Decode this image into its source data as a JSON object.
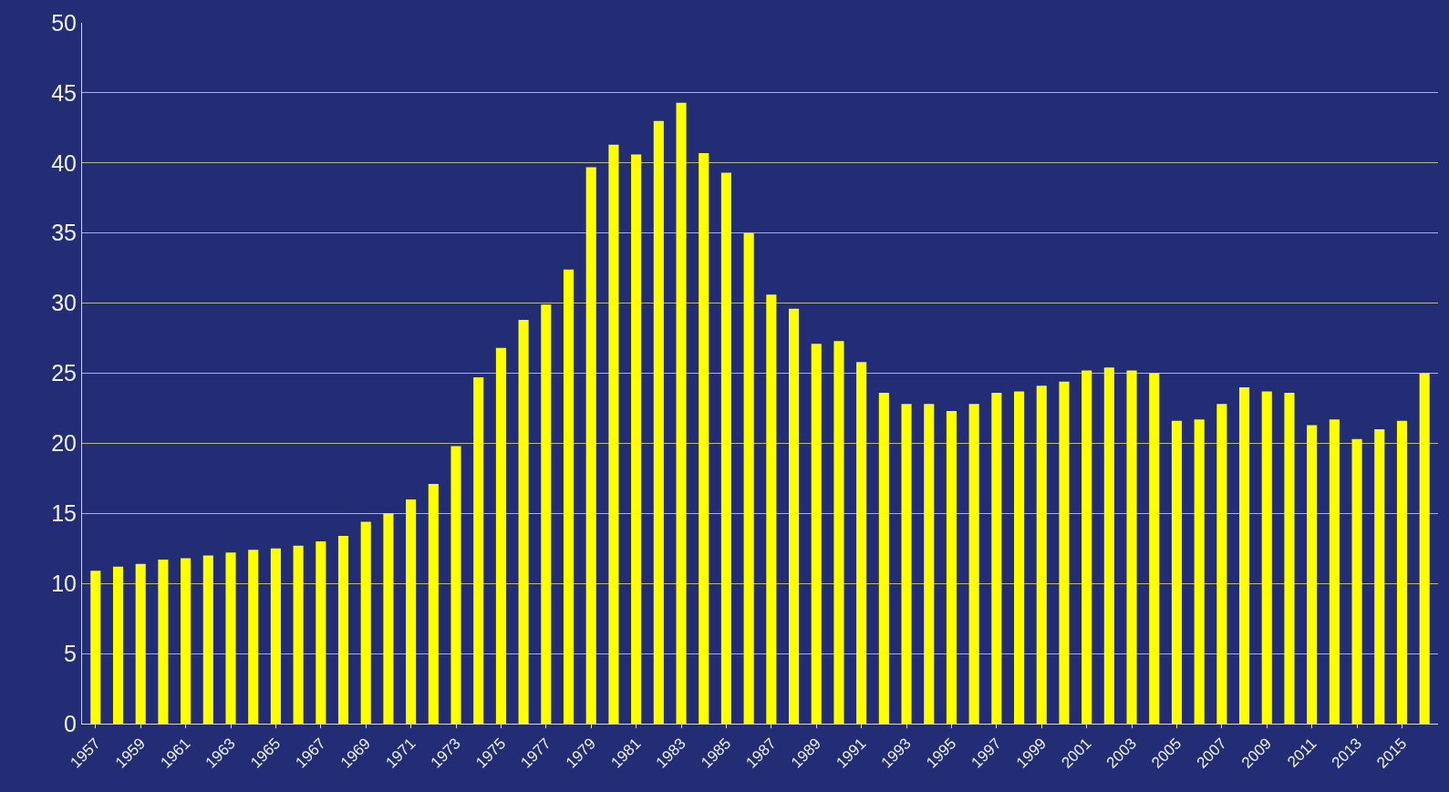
{
  "chart_data": {
    "type": "bar",
    "categories": [
      "1957",
      null,
      "1959",
      null,
      "1961",
      null,
      "1963",
      null,
      "1965",
      null,
      "1967",
      null,
      "1969",
      null,
      "1971",
      null,
      "1973",
      null,
      "1975",
      null,
      "1977",
      null,
      "1979",
      null,
      "1981",
      null,
      "1983",
      null,
      "1985",
      null,
      "1987",
      null,
      "1989",
      null,
      "1991",
      null,
      "1993",
      null,
      "1995",
      null,
      "1997",
      null,
      "1999",
      null,
      "2001",
      null,
      "2003",
      null,
      "2005",
      null,
      "2007",
      null,
      "2009",
      null,
      "2011",
      null,
      "2013",
      null,
      "2015",
      null
    ],
    "values": [
      10.9,
      11.2,
      11.4,
      11.7,
      11.8,
      12.0,
      12.2,
      12.4,
      12.5,
      12.7,
      13.0,
      13.4,
      14.4,
      15.0,
      16.0,
      17.1,
      19.8,
      24.7,
      26.8,
      28.8,
      29.9,
      32.4,
      39.7,
      41.3,
      40.6,
      43.0,
      44.3,
      40.7,
      39.3,
      35.0,
      30.6,
      29.6,
      27.1,
      27.3,
      25.8,
      23.6,
      22.8,
      22.8,
      22.3,
      22.8,
      23.6,
      23.7,
      24.1,
      24.4,
      25.2,
      25.4,
      25.2,
      25.0,
      21.6,
      21.7,
      22.8,
      24.0,
      23.7,
      23.6,
      21.3,
      21.7,
      20.3,
      21.0,
      21.6,
      25.0
    ],
    "color": "#ffff00",
    "ylim": [
      0,
      50
    ],
    "yticks": [
      0,
      5,
      10,
      15,
      20,
      25,
      30,
      35,
      40,
      45,
      50
    ],
    "grid": "y",
    "legend": false
  }
}
